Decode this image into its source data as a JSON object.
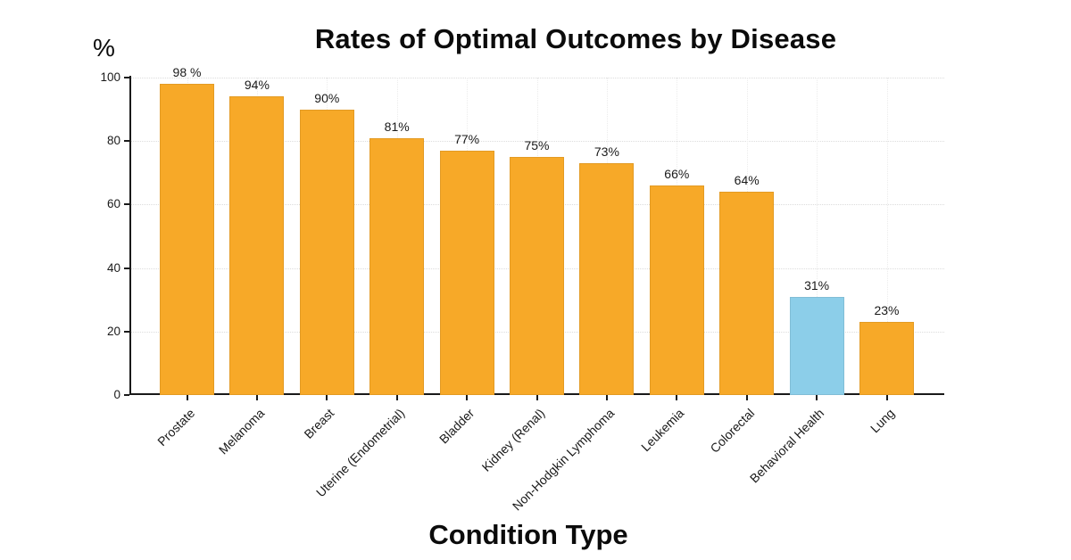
{
  "chart_data": {
    "type": "bar",
    "title": "Rates of Optimal Outcomes by Disease",
    "xlabel": "Condition Type",
    "ylabel": "%",
    "ylim": [
      0,
      100
    ],
    "yticks": [
      0,
      20,
      40,
      60,
      80,
      100
    ],
    "grid": true,
    "legend": "none",
    "categories": [
      "Prostate",
      "Melanoma",
      "Breast",
      "Uterine (Endometrial)",
      "Bladder",
      "Kidney (Renal)",
      "Non-Hodgkin Lymphoma",
      "Leukemia",
      "Colorectal",
      "Behavioral Health",
      "Lung"
    ],
    "values": [
      98,
      94,
      90,
      81,
      77,
      75,
      73,
      66,
      64,
      31,
      23
    ],
    "value_labels": [
      "98 %",
      "94%",
      "90%",
      "81%",
      "77%",
      "75%",
      "73%",
      "66%",
      "64%",
      "31%",
      "23%"
    ],
    "highlight_category": "Behavioral Health",
    "colors": {
      "bar_default": "#F7A928",
      "bar_highlight": "#8CCEE9",
      "axis": "#1a1a1a",
      "grid": "#dcdcdc",
      "background": "#ffffff"
    },
    "bar_colors": [
      "#F7A928",
      "#F7A928",
      "#F7A928",
      "#F7A928",
      "#F7A928",
      "#F7A928",
      "#F7A928",
      "#F7A928",
      "#F7A928",
      "#8CCEE9",
      "#F7A928"
    ]
  }
}
